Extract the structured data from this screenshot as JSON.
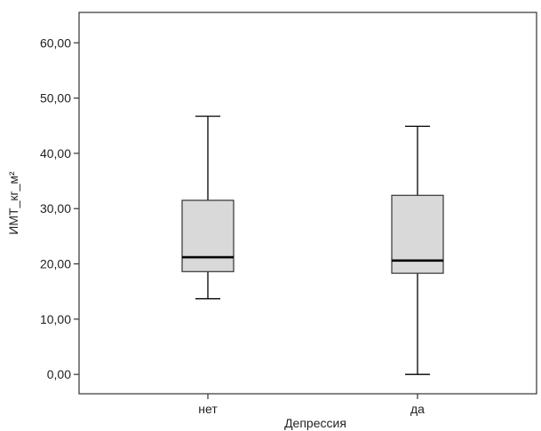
{
  "chart_data": {
    "type": "boxplot",
    "title": "",
    "xlabel": "Депрессия",
    "ylabel": "ИМТ_кг_м²",
    "ylim": [
      -3.5,
      65.5
    ],
    "yticks": [
      0,
      10,
      20,
      30,
      40,
      50,
      60
    ],
    "ytick_labels": [
      "0,00",
      "10,00",
      "20,00",
      "30,00",
      "40,00",
      "50,00",
      "60,00"
    ],
    "categories": [
      "нет",
      "да"
    ],
    "boxes": [
      {
        "category": "нет",
        "min": 13.7,
        "q1": 18.6,
        "median": 21.2,
        "q3": 31.5,
        "max": 46.7
      },
      {
        "category": "да",
        "min": 0.0,
        "q1": 18.3,
        "median": 20.6,
        "q3": 32.4,
        "max": 44.9
      }
    ],
    "grid": false,
    "legend": "none",
    "box_fill": "#d9d9d9",
    "line_color": "#000000"
  }
}
